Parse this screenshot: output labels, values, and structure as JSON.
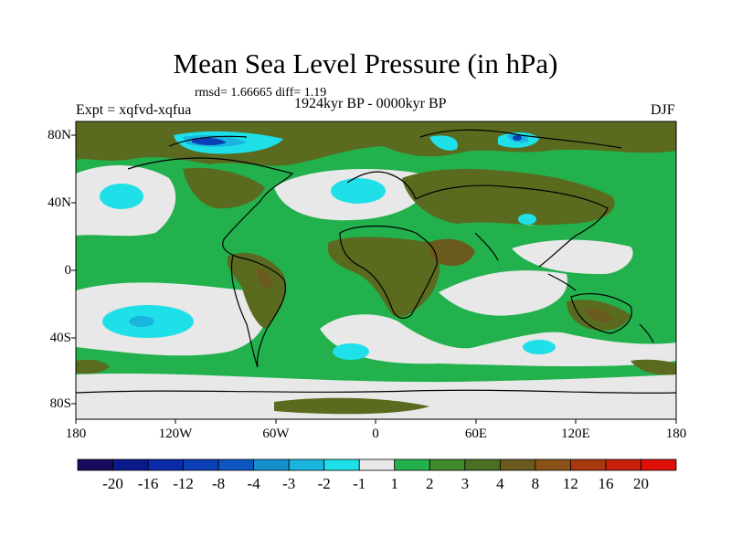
{
  "plot": {
    "title": "Mean Sea Level Pressure (in hPa)",
    "stats": "rmsd= 1.66665 diff= 1.19",
    "experiment": "Expt = xqfvd-xqfua",
    "period": "1924kyr BP - 0000kyr BP",
    "season": "DJF"
  },
  "axes": {
    "y_ticks": [
      "80N",
      "40N",
      "0",
      "40S",
      "80S"
    ],
    "x_ticks": [
      "180",
      "120W",
      "60W",
      "0",
      "60E",
      "120E",
      "180"
    ]
  },
  "colorbar": {
    "labels": [
      "-20",
      "-16",
      "-12",
      "-8",
      "-4",
      "-3",
      "-2",
      "-1",
      "1",
      "2",
      "3",
      "4",
      "8",
      "12",
      "16",
      "20"
    ],
    "colors": [
      "#1a0a5c",
      "#0a1a8c",
      "#0b2aa8",
      "#0b3fb8",
      "#0c55c2",
      "#1590cf",
      "#19b5de",
      "#1fe0e8",
      "#e8e8e8",
      "#22b14c",
      "#3f8a2c",
      "#4a6e22",
      "#6b5a1e",
      "#8a5216",
      "#a8380e",
      "#c81e0a",
      "#e01008"
    ]
  }
}
